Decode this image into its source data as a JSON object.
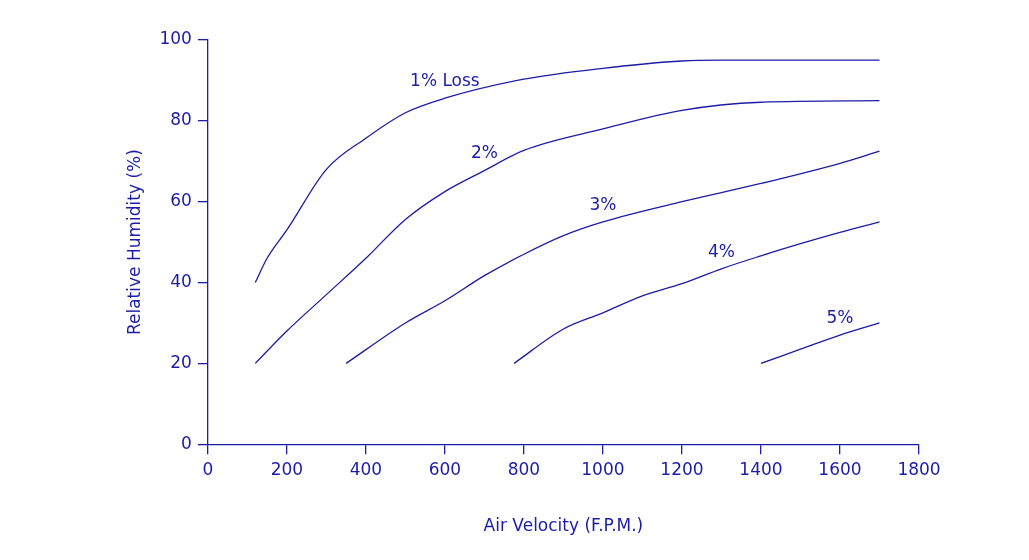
{
  "chart_data": {
    "type": "line",
    "xlabel": "Air Velocity (F.P.M.)",
    "ylabel": "Relative Humidity (%)",
    "xlim": [
      0,
      1800
    ],
    "xticks": [
      0,
      200,
      400,
      600,
      800,
      1000,
      1200,
      1400,
      1600,
      1800
    ],
    "ylim": [
      0,
      100
    ],
    "yticks": [
      0,
      20,
      40,
      60,
      80,
      100
    ],
    "grid": false,
    "legend": false,
    "marker": "none",
    "line_style": "solid",
    "series": [
      {
        "name": "1% Loss",
        "color": "#1c1ca8",
        "x": [
          120,
          150,
          200,
          300,
          400,
          500,
          600,
          800,
          1000,
          1200,
          1300,
          1700
        ],
        "values": [
          40,
          46,
          53,
          68,
          75.7,
          82,
          85.6,
          90.3,
          93,
          94.8,
          95,
          95
        ]
      },
      {
        "name": "2%",
        "color": "#1c1ca8",
        "x": [
          120,
          200,
          300,
          400,
          500,
          600,
          700,
          800,
          1000,
          1200,
          1400,
          1700
        ],
        "values": [
          20,
          28,
          37,
          46,
          55.6,
          62.5,
          67.7,
          72.7,
          78,
          82.6,
          84.6,
          85
        ]
      },
      {
        "name": "3%",
        "color": "#1c1ca8",
        "x": [
          350,
          500,
          600,
          700,
          800,
          900,
          1000,
          1200,
          1400,
          1600,
          1700
        ],
        "values": [
          20,
          30,
          35.5,
          41.7,
          47,
          51.6,
          55,
          60,
          64.5,
          69.5,
          72.5
        ]
      },
      {
        "name": "4%",
        "color": "#1c1ca8",
        "x": [
          775,
          900,
          1000,
          1100,
          1200,
          1300,
          1400,
          1500,
          1600,
          1700
        ],
        "values": [
          20,
          28.5,
          32.5,
          36.7,
          39.7,
          43.4,
          46.6,
          49.6,
          52.4,
          55
        ]
      },
      {
        "name": "5%",
        "color": "#1c1ca8",
        "x": [
          1400,
          1500,
          1600,
          1700
        ],
        "values": [
          20,
          23.5,
          27,
          30
        ]
      }
    ]
  }
}
